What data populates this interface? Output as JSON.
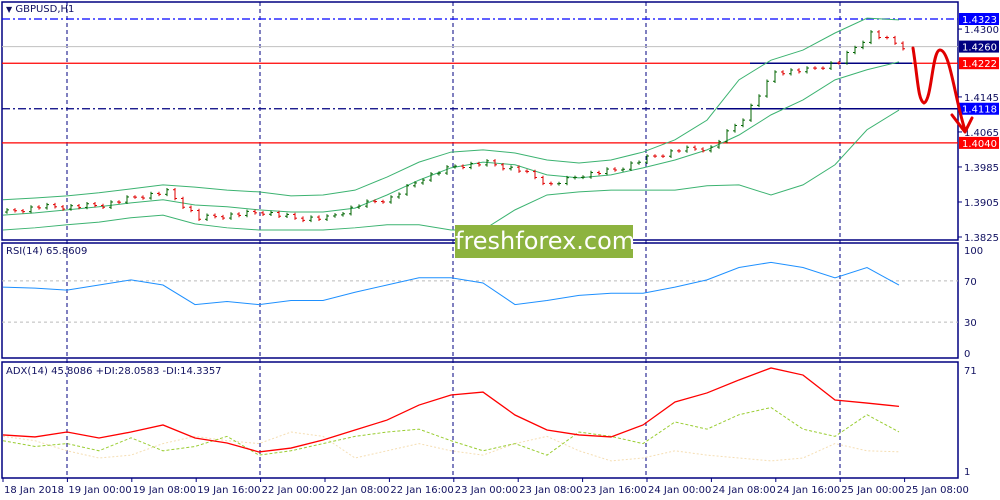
{
  "header": {
    "symbol": "GBPUSD,H1"
  },
  "watermark": "freshforex.com",
  "colors": {
    "frame": "#000080",
    "bull": "#006400",
    "bear": "#e00000",
    "bands": "#3cb371",
    "rsi": "#1e90ff",
    "adx": "#ff0000",
    "plus_di": "#9acd32",
    "minus_di": "#f5deb3",
    "annotation": "#e00000"
  },
  "rsi_panel": {
    "label": "RSI(14) 65.8609",
    "levels": [
      70,
      30
    ],
    "scale_labels": [
      "100",
      "70",
      "30",
      "0"
    ]
  },
  "adx_panel": {
    "label": "ADX(14) 45.8086 +DI:28.0583 -DI:14.3357",
    "scale_labels": [
      "71",
      "1"
    ]
  },
  "price_scale": {
    "ticks": [
      "1.4300",
      "1.4145",
      "1.4065",
      "1.3985",
      "1.3905",
      "1.3825"
    ]
  },
  "levels": [
    {
      "price": "1.4323",
      "style": "dash-dot",
      "color": "#0000ff",
      "label_bg": "#0000ff"
    },
    {
      "price": "1.4260",
      "style": "solid",
      "color": "#c0c0c0",
      "label_bg": "#000080"
    },
    {
      "price": "1.4222",
      "style": "solid",
      "color": "#ff0000",
      "label_bg": "#ff0000"
    },
    {
      "price": "1.4118",
      "style": "dash-dot",
      "color": "#000080",
      "label_bg": "#0000ff"
    },
    {
      "price": "1.4040",
      "style": "solid",
      "color": "#ff0000",
      "label_bg": "#ff0000"
    }
  ],
  "time_axis": [
    "18 Jan 2018",
    "19 Jan 00:00",
    "19 Jan 08:00",
    "19 Jan 16:00",
    "22 Jan 00:00",
    "22 Jan 08:00",
    "22 Jan 16:00",
    "23 Jan 00:00",
    "23 Jan 08:00",
    "23 Jan 16:00",
    "24 Jan 00:00",
    "24 Jan 08:00",
    "24 Jan 16:00",
    "25 Jan 00:00",
    "25 Jan 08:00"
  ],
  "chart_data": {
    "type": "line",
    "x": [
      "18 Jan 16:00",
      "18 Jan 20:00",
      "19 Jan 00:00",
      "19 Jan 04:00",
      "19 Jan 08:00",
      "19 Jan 12:00",
      "19 Jan 16:00",
      "19 Jan 20:00",
      "22 Jan 00:00",
      "22 Jan 04:00",
      "22 Jan 08:00",
      "22 Jan 12:00",
      "22 Jan 16:00",
      "22 Jan 20:00",
      "23 Jan 00:00",
      "23 Jan 04:00",
      "23 Jan 08:00",
      "23 Jan 12:00",
      "23 Jan 16:00",
      "23 Jan 20:00",
      "24 Jan 00:00",
      "24 Jan 04:00",
      "24 Jan 08:00",
      "24 Jan 12:00",
      "24 Jan 16:00",
      "24 Jan 20:00",
      "25 Jan 00:00",
      "25 Jan 04:00",
      "25 Jan 08:00"
    ],
    "price": {
      "close": [
        1.3882,
        1.3894,
        1.3894,
        1.3898,
        1.3916,
        1.3928,
        1.3868,
        1.3875,
        1.3882,
        1.3868,
        1.3868,
        1.3898,
        1.3914,
        1.396,
        1.3987,
        1.3994,
        1.3978,
        1.3944,
        1.3967,
        1.3978,
        1.4005,
        1.4024,
        1.4028,
        1.4097,
        1.4202,
        1.4206,
        1.4225,
        1.4291,
        1.426
      ],
      "bb_upper": [
        1.391,
        1.3914,
        1.3919,
        1.3926,
        1.3935,
        1.3944,
        1.3939,
        1.3932,
        1.3928,
        1.3919,
        1.3921,
        1.3932,
        1.3962,
        1.3996,
        1.4019,
        1.4024,
        1.4017,
        1.4001,
        1.3994,
        1.4001,
        1.4019,
        1.4047,
        1.4092,
        1.4184,
        1.4229,
        1.4252,
        1.4291,
        1.4325,
        1.4321
      ],
      "bb_middle": [
        1.3875,
        1.388,
        1.3887,
        1.3894,
        1.3903,
        1.391,
        1.3898,
        1.3894,
        1.3887,
        1.3882,
        1.3882,
        1.3891,
        1.3921,
        1.3955,
        1.3983,
        1.3996,
        1.399,
        1.3967,
        1.396,
        1.3967,
        1.3983,
        1.4001,
        1.4024,
        1.4058,
        1.4104,
        1.4138,
        1.4184,
        1.4207,
        1.4225
      ],
      "bb_lower": [
        1.3841,
        1.3846,
        1.3853,
        1.3859,
        1.3869,
        1.3875,
        1.3855,
        1.3846,
        1.3841,
        1.3841,
        1.3841,
        1.3846,
        1.3853,
        1.3853,
        1.3841,
        1.3841,
        1.3887,
        1.3921,
        1.3928,
        1.3932,
        1.3932,
        1.3932,
        1.3942,
        1.3944,
        1.3921,
        1.3944,
        1.399,
        1.407,
        1.4115
      ],
      "ylim": [
        1.3825,
        1.4323
      ]
    },
    "rsi": {
      "values": [
        64,
        63,
        61,
        66,
        71,
        66,
        47,
        50,
        47,
        51,
        51,
        59,
        66,
        73,
        73,
        68,
        47,
        51,
        56,
        58,
        58,
        64,
        71,
        83,
        88,
        83,
        73,
        83,
        65.9
      ],
      "ylim": [
        0,
        100
      ]
    },
    "adx": {
      "adx": [
        26.0,
        24.6,
        28.0,
        23.9,
        28.0,
        32.9,
        23.9,
        20.4,
        14.2,
        16.9,
        22.5,
        29.4,
        36.3,
        46.7,
        53.7,
        55.7,
        39.8,
        29.4,
        26.0,
        24.6,
        32.9,
        48.8,
        55.1,
        64.1,
        72.4,
        67.5,
        50.2,
        48.1,
        45.8
      ],
      "plus_di": [
        22,
        18,
        20,
        15,
        24,
        15,
        18,
        25,
        12,
        15,
        20,
        25,
        28,
        30,
        22,
        15,
        20,
        12,
        28,
        25,
        20,
        35,
        30,
        40,
        45,
        30,
        25,
        40,
        28.1
      ],
      "minus_di": [
        25,
        22,
        15,
        10,
        12,
        20,
        25,
        22,
        20,
        28,
        25,
        10,
        15,
        20,
        15,
        12,
        20,
        25,
        15,
        8,
        10,
        15,
        12,
        10,
        8,
        10,
        20,
        15,
        14.3
      ],
      "ylim": [
        1,
        71
      ]
    }
  }
}
